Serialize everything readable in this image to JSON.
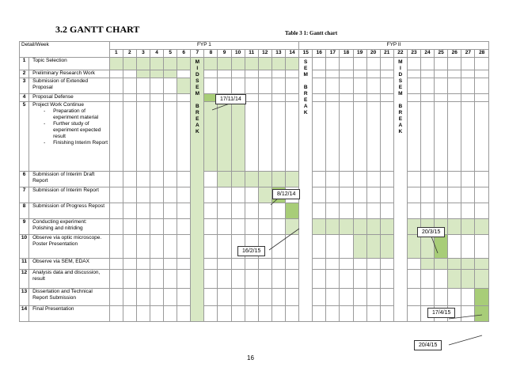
{
  "heading": "3.2 GANTT CHART",
  "caption": "Table 3 1: Gantt chart",
  "table": {
    "corner": "Detail/Week",
    "phase1": "FYP 1",
    "phase2": "FYP II",
    "weeks": [
      "1",
      "2",
      "3",
      "4",
      "5",
      "6",
      "7",
      "8",
      "9",
      "10",
      "11",
      "12",
      "13",
      "14",
      "15",
      "16",
      "17",
      "18",
      "19",
      "20",
      "21",
      "22",
      "23",
      "24",
      "25",
      "26",
      "27",
      "28"
    ],
    "break1": [
      "M",
      "I",
      "D",
      "S",
      "E",
      "M",
      "",
      "B",
      "R",
      "E",
      "A",
      "K"
    ],
    "break2": [
      "S",
      "E",
      "M",
      "",
      "B",
      "R",
      "E",
      "A",
      "K"
    ],
    "break3": [
      "M",
      "I",
      "D",
      "S",
      "E",
      "M",
      "",
      "B",
      "R",
      "E",
      "A",
      "K"
    ],
    "rows": [
      {
        "num": "1",
        "task": "Topic Selection"
      },
      {
        "num": "2",
        "task": "Preliminary Research Work"
      },
      {
        "num": "3",
        "task": "Submission of Extended Proposal"
      },
      {
        "num": "4",
        "task": "Proposal Defense"
      },
      {
        "num": "5",
        "task": "Project Work Continue",
        "subs": [
          "Preparation of experiment material",
          "Further study of experiment expected result",
          "Finishing Interim Report"
        ]
      },
      {
        "num": "6",
        "task": "Submission of Interim Draft Report"
      },
      {
        "num": "7",
        "task": "Submission of Interim Report"
      },
      {
        "num": "8",
        "task": "Submission of Progress Repost"
      },
      {
        "num": "9",
        "task": "Conducting experiment: Polishing and nitriding"
      },
      {
        "num": "10",
        "task": "Observe via optic microscope. Poster Presentation"
      },
      {
        "num": "11",
        "task": "Observe via SEM, EDAX"
      },
      {
        "num": "12",
        "task": "Analysis data and discussion, result"
      },
      {
        "num": "13",
        "task": "Dissertation and Technical Report Submission"
      },
      {
        "num": "14",
        "task": "Final Presentation"
      }
    ]
  },
  "callouts": {
    "c1": "17/11/14",
    "c2": "8/12/14",
    "c3": "16/2/15",
    "c4": "20/3/15",
    "c5": "17/4/15",
    "c6": "20/4/15"
  },
  "colors": {
    "light_fill": "#d8e8c4",
    "milestone_fill": "#a8cd78"
  },
  "page_number": "16"
}
